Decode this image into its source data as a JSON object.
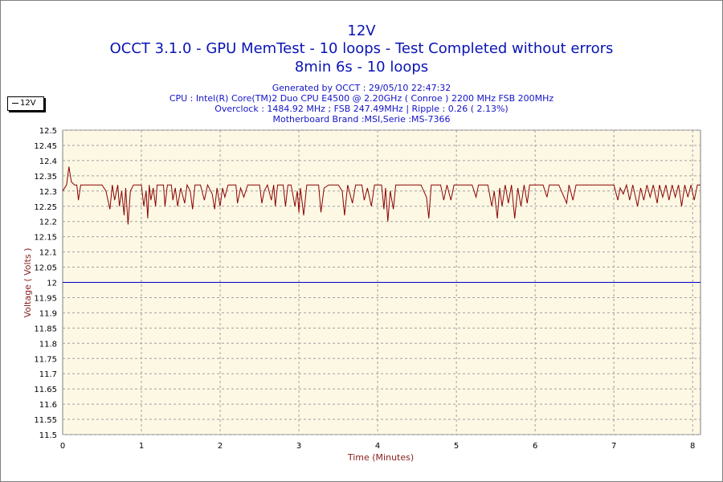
{
  "chart_data": {
    "type": "line",
    "title": "12V",
    "subtitle_lines": [
      "OCCT 3.1.0 - GPU MemTest - 10 loops - Test Completed without errors",
      "8min 6s - 10 loops"
    ],
    "info_lines": [
      "Generated by OCCT : 29/05/10 22:47:32",
      "CPU : Intel(R) Core(TM)2 Duo CPU E4500 @ 2.20GHz ( Conroe ) 2200 MHz FSB 200MHz",
      "Overclock : 1484.92 MHz ; FSB 247.49MHz | Ripple : 0.26 ( 2.13%)",
      "Motherboard Brand :MSI,Serie :MS-7366"
    ],
    "xlabel": "Time (Minutes)",
    "ylabel": "Voltage ( Volts )",
    "xlim": [
      0,
      8.1
    ],
    "ylim": [
      11.5,
      12.5
    ],
    "x_ticks": [
      "0",
      "1",
      "2",
      "3",
      "4",
      "5",
      "6",
      "7",
      "8"
    ],
    "y_ticks": [
      "12.5",
      "12.45",
      "12.4",
      "12.35",
      "12.3",
      "12.25",
      "12.2",
      "12.15",
      "12.1",
      "12.05",
      "12",
      "11.95",
      "11.9",
      "11.85",
      "11.8",
      "11.75",
      "11.7",
      "11.65",
      "11.6",
      "11.55",
      "11.5"
    ],
    "grid": true,
    "legend": {
      "placement": "top-left",
      "entries": [
        "12V"
      ]
    },
    "reference_line": {
      "y": 12.0,
      "color": "#0000cc"
    },
    "series": [
      {
        "name": "12V",
        "color": "#8b0000",
        "points": [
          [
            0.0,
            12.3
          ],
          [
            0.05,
            12.32
          ],
          [
            0.08,
            12.38
          ],
          [
            0.11,
            12.33
          ],
          [
            0.15,
            12.32
          ],
          [
            0.18,
            12.32
          ],
          [
            0.2,
            12.27
          ],
          [
            0.23,
            12.32
          ],
          [
            0.4,
            12.32
          ],
          [
            0.45,
            12.32
          ],
          [
            0.5,
            12.32
          ],
          [
            0.55,
            12.3
          ],
          [
            0.6,
            12.24
          ],
          [
            0.63,
            12.32
          ],
          [
            0.66,
            12.27
          ],
          [
            0.7,
            12.32
          ],
          [
            0.72,
            12.25
          ],
          [
            0.75,
            12.3
          ],
          [
            0.78,
            12.22
          ],
          [
            0.8,
            12.31
          ],
          [
            0.83,
            12.19
          ],
          [
            0.86,
            12.3
          ],
          [
            0.9,
            12.32
          ],
          [
            1.0,
            12.32
          ],
          [
            1.03,
            12.25
          ],
          [
            1.06,
            12.3
          ],
          [
            1.08,
            12.21
          ],
          [
            1.1,
            12.32
          ],
          [
            1.12,
            12.27
          ],
          [
            1.15,
            12.31
          ],
          [
            1.18,
            12.25
          ],
          [
            1.2,
            12.32
          ],
          [
            1.28,
            12.32
          ],
          [
            1.3,
            12.25
          ],
          [
            1.33,
            12.32
          ],
          [
            1.38,
            12.32
          ],
          [
            1.4,
            12.27
          ],
          [
            1.43,
            12.31
          ],
          [
            1.46,
            12.25
          ],
          [
            1.5,
            12.31
          ],
          [
            1.55,
            12.26
          ],
          [
            1.58,
            12.32
          ],
          [
            1.62,
            12.3
          ],
          [
            1.65,
            12.24
          ],
          [
            1.68,
            12.32
          ],
          [
            1.75,
            12.32
          ],
          [
            1.8,
            12.27
          ],
          [
            1.84,
            12.32
          ],
          [
            1.9,
            12.29
          ],
          [
            1.93,
            12.24
          ],
          [
            1.96,
            12.31
          ],
          [
            2.0,
            12.25
          ],
          [
            2.03,
            12.31
          ],
          [
            2.06,
            12.28
          ],
          [
            2.1,
            12.32
          ],
          [
            2.2,
            12.32
          ],
          [
            2.22,
            12.26
          ],
          [
            2.26,
            12.31
          ],
          [
            2.3,
            12.28
          ],
          [
            2.35,
            12.32
          ],
          [
            2.5,
            12.32
          ],
          [
            2.53,
            12.26
          ],
          [
            2.56,
            12.3
          ],
          [
            2.6,
            12.32
          ],
          [
            2.65,
            12.27
          ],
          [
            2.68,
            12.32
          ],
          [
            2.7,
            12.25
          ],
          [
            2.73,
            12.32
          ],
          [
            2.8,
            12.32
          ],
          [
            2.83,
            12.25
          ],
          [
            2.86,
            12.32
          ],
          [
            2.9,
            12.32
          ],
          [
            2.95,
            12.25
          ],
          [
            2.98,
            12.3
          ],
          [
            3.0,
            12.23
          ],
          [
            3.02,
            12.31
          ],
          [
            3.06,
            12.22
          ],
          [
            3.1,
            12.32
          ],
          [
            3.25,
            12.32
          ],
          [
            3.28,
            12.23
          ],
          [
            3.32,
            12.31
          ],
          [
            3.38,
            12.32
          ],
          [
            3.5,
            12.32
          ],
          [
            3.55,
            12.3
          ],
          [
            3.58,
            12.22
          ],
          [
            3.62,
            12.32
          ],
          [
            3.68,
            12.26
          ],
          [
            3.72,
            12.32
          ],
          [
            3.8,
            12.32
          ],
          [
            3.83,
            12.27
          ],
          [
            3.87,
            12.31
          ],
          [
            3.92,
            12.25
          ],
          [
            3.96,
            12.32
          ],
          [
            4.05,
            12.32
          ],
          [
            4.08,
            12.24
          ],
          [
            4.1,
            12.31
          ],
          [
            4.13,
            12.2
          ],
          [
            4.16,
            12.3
          ],
          [
            4.2,
            12.24
          ],
          [
            4.23,
            12.32
          ],
          [
            4.3,
            12.32
          ],
          [
            4.4,
            12.32
          ],
          [
            4.45,
            12.32
          ],
          [
            4.5,
            12.32
          ],
          [
            4.55,
            12.32
          ],
          [
            4.62,
            12.28
          ],
          [
            4.65,
            12.21
          ],
          [
            4.68,
            12.32
          ],
          [
            4.8,
            12.32
          ],
          [
            4.84,
            12.27
          ],
          [
            4.88,
            12.32
          ],
          [
            4.93,
            12.27
          ],
          [
            4.97,
            12.32
          ],
          [
            5.1,
            12.32
          ],
          [
            5.2,
            12.32
          ],
          [
            5.25,
            12.28
          ],
          [
            5.28,
            12.32
          ],
          [
            5.4,
            12.32
          ],
          [
            5.45,
            12.25
          ],
          [
            5.48,
            12.3
          ],
          [
            5.52,
            12.21
          ],
          [
            5.55,
            12.31
          ],
          [
            5.58,
            12.25
          ],
          [
            5.62,
            12.32
          ],
          [
            5.66,
            12.26
          ],
          [
            5.7,
            12.32
          ],
          [
            5.74,
            12.21
          ],
          [
            5.78,
            12.31
          ],
          [
            5.82,
            12.25
          ],
          [
            5.86,
            12.32
          ],
          [
            5.9,
            12.26
          ],
          [
            5.93,
            12.32
          ],
          [
            5.95,
            12.32
          ],
          [
            6.0,
            12.32
          ],
          [
            6.1,
            12.32
          ],
          [
            6.15,
            12.28
          ],
          [
            6.18,
            12.32
          ],
          [
            6.25,
            12.32
          ],
          [
            6.3,
            12.32
          ],
          [
            6.4,
            12.26
          ],
          [
            6.43,
            12.32
          ],
          [
            6.48,
            12.27
          ],
          [
            6.52,
            12.32
          ],
          [
            6.6,
            12.32
          ],
          [
            7.0,
            12.32
          ],
          [
            7.05,
            12.27
          ],
          [
            7.08,
            12.31
          ],
          [
            7.12,
            12.29
          ],
          [
            7.16,
            12.32
          ],
          [
            7.2,
            12.27
          ],
          [
            7.24,
            12.32
          ],
          [
            7.3,
            12.25
          ],
          [
            7.34,
            12.31
          ],
          [
            7.38,
            12.27
          ],
          [
            7.42,
            12.32
          ],
          [
            7.46,
            12.28
          ],
          [
            7.5,
            12.32
          ],
          [
            7.55,
            12.26
          ],
          [
            7.58,
            12.32
          ],
          [
            7.62,
            12.28
          ],
          [
            7.66,
            12.32
          ],
          [
            7.7,
            12.27
          ],
          [
            7.74,
            12.32
          ],
          [
            7.78,
            12.28
          ],
          [
            7.82,
            12.32
          ],
          [
            7.86,
            12.25
          ],
          [
            7.9,
            12.32
          ],
          [
            7.94,
            12.28
          ],
          [
            7.98,
            12.32
          ],
          [
            8.02,
            12.27
          ],
          [
            8.06,
            12.32
          ],
          [
            8.1,
            12.32
          ]
        ]
      }
    ]
  }
}
